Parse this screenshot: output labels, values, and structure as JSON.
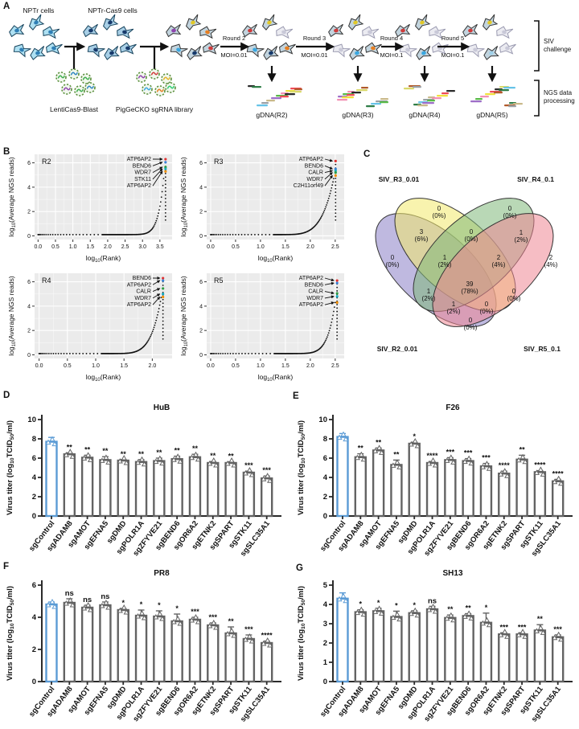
{
  "panels": {
    "A": {
      "letter": "A",
      "cells1": "NPTr cells",
      "cells2": "NPTr-Cas9 cells",
      "virus1": "LentiCas9-Blast",
      "virus2": "PigGeCKO sgRNA library",
      "rounds": [
        {
          "name": "Round 2",
          "moi": "MOI=0.01",
          "gdna": "gDNA(R2)"
        },
        {
          "name": "Round 3",
          "moi": "MOI=0.01",
          "gdna": "gDNA(R3)"
        },
        {
          "name": "Round 4",
          "moi": "MOI=0.1",
          "gdna": "gDNA(R4)"
        },
        {
          "name": "Round 5",
          "moi": "MOI=0.1",
          "gdna": "gDNA(R5)"
        }
      ],
      "bracket1": [
        "SIV",
        "challenge"
      ],
      "bracket2": [
        "NGS data",
        "processing"
      ]
    },
    "B": {
      "letter": "B"
    },
    "C": {
      "letter": "C",
      "sets": [
        {
          "id": "R3",
          "label": "SIV_R3_0.01",
          "label_color": "#d3bf1f",
          "fill": "#f3e96b"
        },
        {
          "id": "R4",
          "label": "SIV_R4_0.1",
          "label_color": "#56a55c",
          "fill": "#7fb87a"
        },
        {
          "id": "R2",
          "label": "SIV_R2_0.01",
          "label_color": "#b25fb2",
          "fill": "#8b7fc7"
        },
        {
          "id": "R5",
          "label": "SIV_R5_0.1",
          "label_color": "#ee6e8e",
          "fill": "#ee8794"
        }
      ],
      "regions": [
        {
          "id": "R3_only",
          "count": "0",
          "pct": "(0%)"
        },
        {
          "id": "R4_only",
          "count": "0",
          "pct": "(0%)"
        },
        {
          "id": "R2R3",
          "count": "3",
          "pct": "(6%)"
        },
        {
          "id": "R3R4",
          "count": "0",
          "pct": "(0%)"
        },
        {
          "id": "R4R5",
          "count": "1",
          "pct": "(2%)"
        },
        {
          "id": "R2_only",
          "count": "0",
          "pct": "(0%)"
        },
        {
          "id": "R2R3R4",
          "count": "1",
          "pct": "(2%)"
        },
        {
          "id": "R3R4R5",
          "count": "2",
          "pct": "(4%)"
        },
        {
          "id": "R5_only",
          "count": "2",
          "pct": "(4%)"
        },
        {
          "id": "R2R4",
          "count": "1",
          "pct": "(2%)"
        },
        {
          "id": "R2R3R4R5",
          "count": "39",
          "pct": "(78%)"
        },
        {
          "id": "R3R5",
          "count": "0",
          "pct": "(0%)"
        },
        {
          "id": "R2R3R5",
          "count": "1",
          "pct": "(2%)"
        },
        {
          "id": "R2R4R5",
          "count": "0",
          "pct": "(0%)"
        },
        {
          "id": "R2R5",
          "count": "0",
          "pct": "(0%)"
        }
      ]
    },
    "D": {
      "letter": "D"
    },
    "E": {
      "letter": "E"
    },
    "F": {
      "letter": "F"
    },
    "G": {
      "letter": "G"
    }
  },
  "chart_data": [
    {
      "id": "R2",
      "type": "scatter",
      "title": "R2",
      "xlabel_parts": [
        {
          "t": "log"
        },
        {
          "t": "10",
          "sub": true
        },
        {
          "t": "(Rank)"
        }
      ],
      "ylabel_parts": [
        {
          "t": "log"
        },
        {
          "t": "10",
          "sub": true
        },
        {
          "t": "(Average NGS reads)"
        }
      ],
      "xlim": [
        -0.1,
        3.85
      ],
      "xticks": [
        0.0,
        0.5,
        1.0,
        1.5,
        2.0,
        2.5,
        3.0,
        3.5
      ],
      "ylim": [
        -0.3,
        6.7
      ],
      "yticks": [
        0,
        2,
        4,
        6
      ],
      "x_data_max": 3.68,
      "rise": 4.6,
      "exp": 11,
      "annotations": [
        {
          "gene": "ATP6AP2",
          "y": 6.3,
          "color": "#e03131"
        },
        {
          "gene": "BEND6",
          "y": 6.05,
          "color": "#3b82d8"
        },
        {
          "gene": "WDR7",
          "y": 5.65,
          "color": "#2f9e44"
        },
        {
          "gene": "STK11",
          "y": 5.5,
          "color": "#15aabf"
        },
        {
          "gene": "ATP6AP2",
          "y": 5.3,
          "color": "#f08c00"
        }
      ]
    },
    {
      "id": "R3",
      "type": "scatter",
      "title": "R3",
      "xlabel_parts": [
        {
          "t": "log"
        },
        {
          "t": "10",
          "sub": true
        },
        {
          "t": "(Rank)"
        }
      ],
      "ylabel_parts": [
        {
          "t": "log"
        },
        {
          "t": "10",
          "sub": true
        },
        {
          "t": "(Average NGS reads)"
        }
      ],
      "xlim": [
        -0.08,
        2.68
      ],
      "xticks": [
        0.0,
        0.5,
        1.0,
        1.5,
        2.0,
        2.5
      ],
      "ylim": [
        -0.3,
        6.7
      ],
      "yticks": [
        0,
        2,
        4,
        6
      ],
      "x_data_max": 2.52,
      "rise": 4.6,
      "exp": 5,
      "annotations": [
        {
          "gene": "ATP6AP2",
          "y": 6.15,
          "color": "#e03131"
        },
        {
          "gene": "BEND6",
          "y": 5.5,
          "color": "#3b82d8"
        },
        {
          "gene": "CALR",
          "y": 5.35,
          "color": "#15aabf"
        },
        {
          "gene": "WDR7",
          "y": 5.2,
          "color": "#2f9e44"
        },
        {
          "gene": "C2H11orf49",
          "y": 4.95,
          "color": "#f08c00"
        }
      ]
    },
    {
      "id": "R4",
      "type": "scatter",
      "title": "R4",
      "xlabel_parts": [
        {
          "t": "log"
        },
        {
          "t": "10",
          "sub": true
        },
        {
          "t": "(Rank)"
        }
      ],
      "ylabel_parts": [
        {
          "t": "log"
        },
        {
          "t": "10",
          "sub": true
        },
        {
          "t": "(Average NGS reads)"
        }
      ],
      "xlim": [
        -0.08,
        2.35
      ],
      "xticks": [
        0.0,
        0.5,
        1.0,
        1.5,
        2.0
      ],
      "ylim": [
        -0.3,
        6.7
      ],
      "yticks": [
        0,
        2,
        4,
        6
      ],
      "x_data_max": 2.2,
      "rise": 4.6,
      "exp": 6,
      "annotations": [
        {
          "gene": "BEND6",
          "y": 6.3,
          "color": "#e03131"
        },
        {
          "gene": "ATP6AP2",
          "y": 6.1,
          "color": "#3b82d8"
        },
        {
          "gene": "CALR",
          "y": 5.45,
          "color": "#2f9e44"
        },
        {
          "gene": "WDR7",
          "y": 5.0,
          "color": "#15aabf"
        },
        {
          "gene": "ATP6AP2",
          "y": 4.75,
          "color": "#f08c00"
        }
      ]
    },
    {
      "id": "R5",
      "type": "scatter",
      "title": "R5",
      "xlabel_parts": [
        {
          "t": "log"
        },
        {
          "t": "10",
          "sub": true
        },
        {
          "t": "(Rank)"
        }
      ],
      "ylabel_parts": [
        {
          "t": "log"
        },
        {
          "t": "10",
          "sub": true
        },
        {
          "t": "(Average NGS reads)"
        }
      ],
      "xlim": [
        -0.08,
        2.68
      ],
      "xticks": [
        0.0,
        0.5,
        1.0,
        1.5,
        2.0,
        2.5
      ],
      "ylim": [
        -0.3,
        6.7
      ],
      "yticks": [
        0,
        2,
        4,
        6
      ],
      "x_data_max": 2.55,
      "rise": 4.2,
      "exp": 8,
      "annotations": [
        {
          "gene": "ATP6AP2",
          "y": 6.1,
          "color": "#e03131"
        },
        {
          "gene": "BEND6",
          "y": 5.9,
          "color": "#3b82d8"
        },
        {
          "gene": "CALR",
          "y": 5.05,
          "color": "#2f9e44"
        },
        {
          "gene": "WDR7",
          "y": 4.8,
          "color": "#15aabf"
        },
        {
          "gene": "ATP6AP2",
          "y": 4.3,
          "color": "#f08c00"
        }
      ]
    },
    {
      "id": "D",
      "type": "bar",
      "title": "HuB",
      "ylabel_parts": [
        {
          "t": "Virus titer (log"
        },
        {
          "t": "10",
          "sub": true
        },
        {
          "t": "TCID"
        },
        {
          "t": "50",
          "sub": true
        },
        {
          "t": "/ml)"
        }
      ],
      "ylim": [
        0,
        10
      ],
      "yticks": [
        0,
        2,
        4,
        6,
        8,
        10
      ],
      "control_color": "#5b9bd5",
      "bar_color": "#636363",
      "categories": [
        "sgControl",
        "sgADAM8",
        "sgAMOT",
        "sgEFNA5",
        "sgDMD",
        "sgPOLR1A",
        "sgZFYVE21",
        "sgBEND6",
        "sgOR6A2",
        "sgETNK2",
        "sgSPART",
        "sgSTK11",
        "sgSLC35A1"
      ],
      "values": [
        7.7,
        6.4,
        6.05,
        5.8,
        5.75,
        5.6,
        5.7,
        5.9,
        6.1,
        5.5,
        5.5,
        4.5,
        3.9
      ],
      "errors": [
        0.45,
        0.15,
        0.25,
        0.35,
        0.1,
        0.25,
        0.3,
        0.3,
        0.3,
        0.15,
        0.12,
        0.15,
        0.25
      ],
      "sig": [
        "",
        "**",
        "**",
        "**",
        "**",
        "**",
        "**",
        "**",
        "**",
        "**",
        "**",
        "***",
        "***"
      ]
    },
    {
      "id": "E",
      "type": "bar",
      "title": "F26",
      "ylabel_parts": [
        {
          "t": "Virus titer (log"
        },
        {
          "t": "10",
          "sub": true
        },
        {
          "t": "TCID"
        },
        {
          "t": "50",
          "sub": true
        },
        {
          "t": "/ml)"
        }
      ],
      "ylim": [
        0,
        10
      ],
      "yticks": [
        0,
        2,
        4,
        6,
        8,
        10
      ],
      "control_color": "#5b9bd5",
      "bar_color": "#636363",
      "categories": [
        "sgControl",
        "sgADAM8",
        "sgAMOT",
        "sgEFNA5",
        "sgDMD",
        "sgPOLR1A",
        "sgZFYVE21",
        "sgBEND6",
        "sgOR6A2",
        "sgETNK2",
        "sgSPART",
        "sgSTK11",
        "sgSLC35A1"
      ],
      "values": [
        8.2,
        6.1,
        6.8,
        5.3,
        7.5,
        5.5,
        5.8,
        5.7,
        5.15,
        4.4,
        5.85,
        4.55,
        3.6
      ],
      "errors": [
        0.35,
        0.35,
        0.25,
        0.5,
        0.15,
        0.15,
        0.25,
        0.25,
        0.3,
        0.25,
        0.45,
        0.15,
        0.2
      ],
      "sig": [
        "",
        "**",
        "**",
        "**",
        "*",
        "****",
        "***",
        "***",
        "***",
        "****",
        "**",
        "****",
        "****"
      ]
    },
    {
      "id": "F",
      "type": "bar",
      "title": "PR8",
      "ylabel_parts": [
        {
          "t": "Virus titer (log"
        },
        {
          "t": "10",
          "sub": true
        },
        {
          "t": "TCID"
        },
        {
          "t": "50",
          "sub": true
        },
        {
          "t": "/ml)"
        }
      ],
      "ylim": [
        0,
        6
      ],
      "yticks": [
        0,
        2,
        4,
        6
      ],
      "control_color": "#5b9bd5",
      "bar_color": "#636363",
      "categories": [
        "sgControl",
        "sgADAM8",
        "sgAMOT",
        "sgEFNA5",
        "sgDMD",
        "sgPOLR1A",
        "sgZFYVE21",
        "sgBEND6",
        "sgOR6A2",
        "sgETNK2",
        "sgSPART",
        "sgSTK11",
        "sgSLC35A1"
      ],
      "values": [
        4.8,
        4.9,
        4.6,
        4.75,
        4.45,
        4.1,
        4.05,
        3.75,
        3.85,
        3.5,
        3.0,
        2.65,
        2.4
      ],
      "errors": [
        0.15,
        0.25,
        0.15,
        0.2,
        0.1,
        0.35,
        0.35,
        0.45,
        0.15,
        0.15,
        0.4,
        0.25,
        0.12
      ],
      "sig": [
        "",
        "ns",
        "ns",
        "ns",
        "*",
        "*",
        "*",
        "*",
        "***",
        "***",
        "**",
        "***",
        "****"
      ]
    },
    {
      "id": "G",
      "type": "bar",
      "title": "SH13",
      "ylabel_parts": [
        {
          "t": "Virus titer (log"
        },
        {
          "t": "10",
          "sub": true
        },
        {
          "t": "TCID"
        },
        {
          "t": "50",
          "sub": true
        },
        {
          "t": "/ml)"
        }
      ],
      "ylim": [
        0,
        5
      ],
      "yticks": [
        0,
        1,
        2,
        3,
        4,
        5
      ],
      "control_color": "#5b9bd5",
      "bar_color": "#636363",
      "categories": [
        "sgControl",
        "sgADAM8",
        "sgAMOT",
        "sgEFNA5",
        "sgDMD",
        "sgPOLR1A",
        "sgZFYVE21",
        "sgBEND6",
        "sgOR6A2",
        "sgETNK2",
        "sgSPART",
        "sgSTK11",
        "sgSLC35A1"
      ],
      "values": [
        4.3,
        3.6,
        3.65,
        3.35,
        3.55,
        3.75,
        3.3,
        3.4,
        3.05,
        2.45,
        2.45,
        2.65,
        2.3
      ],
      "errors": [
        0.3,
        0.12,
        0.15,
        0.3,
        0.12,
        0.15,
        0.15,
        0.12,
        0.5,
        0.08,
        0.08,
        0.3,
        0.12
      ],
      "sig": [
        "",
        "*",
        "*",
        "*",
        "*",
        "ns",
        "**",
        "**",
        "*",
        "***",
        "***",
        "**",
        "***"
      ]
    }
  ]
}
